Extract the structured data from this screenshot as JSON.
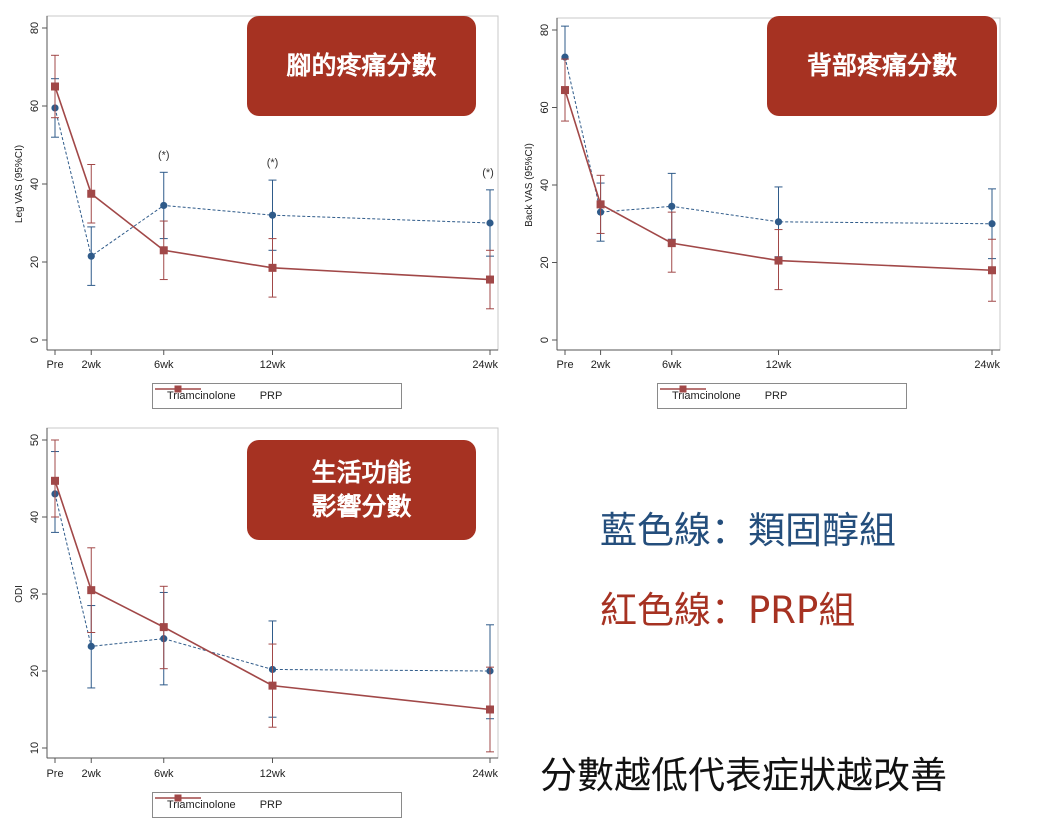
{
  "colors": {
    "triamcinolone": "#2f5b8a",
    "prp": "#a14848",
    "badge_bg": "#a63222",
    "note_blue": "#244e7c",
    "note_red": "#a63222",
    "note_black": "#111111"
  },
  "legend": {
    "triamcinolone": "Triamcinolone",
    "prp": "PRP"
  },
  "chart_data": [
    {
      "type": "line",
      "badge": [
        "腳的疼痛分數"
      ],
      "ylabel": "Leg VAS (95%CI)",
      "ylim": [
        0,
        80
      ],
      "yticks": [
        "0",
        "20",
        "40",
        "60",
        "80"
      ],
      "categories": [
        "Pre",
        "2wk",
        "6wk",
        "12wk",
        "24wk"
      ],
      "x": [
        0,
        2,
        6,
        12,
        24
      ],
      "annotations": [
        "",
        "",
        "(*)",
        "(*)",
        "(*)"
      ],
      "series": [
        {
          "name": "Triamcinolone",
          "values": [
            59.5,
            21.5,
            34.5,
            32,
            30
          ],
          "ci_low": [
            52,
            14,
            26,
            23,
            21.5
          ],
          "ci_high": [
            67,
            29,
            43,
            41,
            38.5
          ]
        },
        {
          "name": "PRP",
          "values": [
            65,
            37.5,
            23,
            18.5,
            15.5
          ],
          "ci_low": [
            57,
            30,
            15.5,
            11,
            8
          ],
          "ci_high": [
            73,
            45,
            30.5,
            26,
            23
          ]
        }
      ]
    },
    {
      "type": "line",
      "badge": [
        "背部疼痛分數"
      ],
      "ylabel": "Back VAS (95%CI)",
      "ylim": [
        0,
        80
      ],
      "yticks": [
        "0",
        "20",
        "40",
        "60",
        "80"
      ],
      "categories": [
        "Pre",
        "2wk",
        "6wk",
        "12wk",
        "24wk"
      ],
      "x": [
        0,
        2,
        6,
        12,
        24
      ],
      "annotations": [
        "",
        "",
        "",
        "",
        ""
      ],
      "series": [
        {
          "name": "Triamcinolone",
          "values": [
            73,
            33,
            34.5,
            30.5,
            30
          ],
          "ci_low": [
            65,
            25.5,
            26,
            21.5,
            21
          ],
          "ci_high": [
            81,
            40.5,
            43,
            39.5,
            39
          ]
        },
        {
          "name": "PRP",
          "values": [
            64.5,
            35,
            25,
            20.5,
            18
          ],
          "ci_low": [
            56.5,
            27.5,
            17.5,
            13,
            10
          ],
          "ci_high": [
            72.5,
            42.5,
            33,
            28.5,
            26
          ]
        }
      ]
    },
    {
      "type": "line",
      "badge": [
        "生活功能",
        "影響分數"
      ],
      "ylabel": "ODI",
      "ylim": [
        10,
        50
      ],
      "yticks": [
        "10",
        "20",
        "30",
        "40",
        "50"
      ],
      "categories": [
        "Pre",
        "2wk",
        "6wk",
        "12wk",
        "24wk"
      ],
      "x": [
        0,
        2,
        6,
        12,
        24
      ],
      "annotations": [
        "",
        "",
        "",
        "",
        ""
      ],
      "series": [
        {
          "name": "Triamcinolone",
          "values": [
            43,
            23.2,
            24.2,
            20.2,
            20
          ],
          "ci_low": [
            38,
            17.8,
            18.2,
            14,
            13.8
          ],
          "ci_high": [
            48.5,
            28.5,
            30.2,
            26.5,
            26
          ]
        },
        {
          "name": "PRP",
          "values": [
            44.7,
            30.5,
            25.7,
            18.1,
            15
          ],
          "ci_low": [
            40,
            25,
            20.3,
            12.7,
            9.5
          ],
          "ci_high": [
            50,
            36,
            31,
            23.5,
            20.5
          ]
        }
      ]
    }
  ],
  "notes": {
    "blue_line": "藍色線：類固醇組",
    "red_line": "紅色線：PRP組",
    "summary": "分數越低代表症狀越改善"
  }
}
